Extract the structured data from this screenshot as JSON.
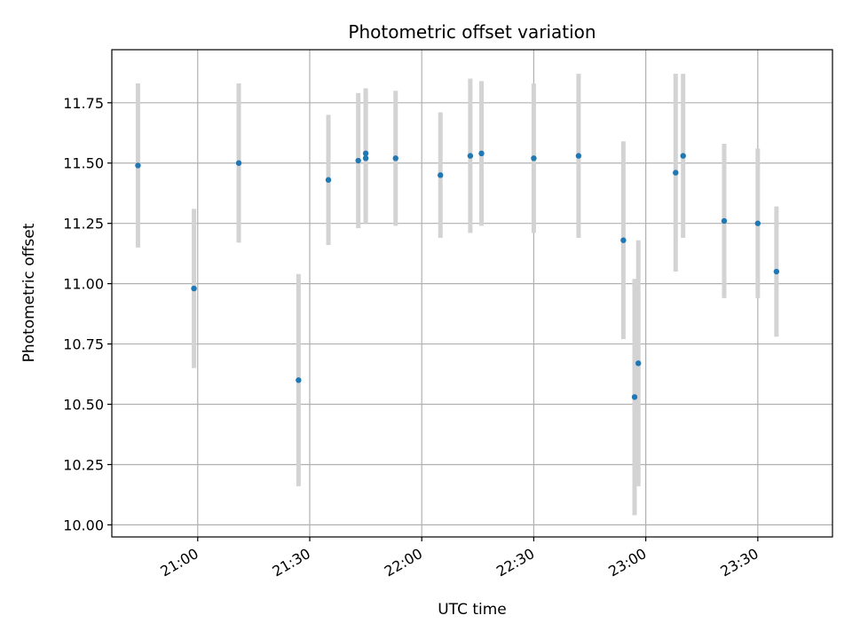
{
  "chart_data": {
    "type": "scatter",
    "title": "Photometric offset variation",
    "xlabel": "UTC time",
    "ylabel": "Photometric offset",
    "x_axis_type": "time",
    "xlim": [
      "20:37",
      "23:50"
    ],
    "ylim": [
      9.95,
      11.97
    ],
    "x_ticks": [
      "21:00",
      "21:30",
      "22:00",
      "22:30",
      "23:00",
      "23:30"
    ],
    "y_ticks": [
      10.0,
      10.25,
      10.5,
      10.75,
      11.0,
      11.25,
      11.5,
      11.75
    ],
    "y_tick_labels": [
      "10.00",
      "10.25",
      "10.50",
      "10.75",
      "11.00",
      "11.25",
      "11.50",
      "11.75"
    ],
    "grid": true,
    "legend": false,
    "colors": {
      "points": "#1f77b4",
      "error_bars": "#d3d3d3",
      "grid": "#b0b0b0"
    },
    "points": [
      {
        "x": "20:44",
        "y": 11.49,
        "err": 0.34
      },
      {
        "x": "20:59",
        "y": 10.98,
        "err": 0.33
      },
      {
        "x": "21:11",
        "y": 11.5,
        "err": 0.33
      },
      {
        "x": "21:27",
        "y": 10.6,
        "err": 0.44
      },
      {
        "x": "21:35",
        "y": 11.43,
        "err": 0.27
      },
      {
        "x": "21:43",
        "y": 11.51,
        "err": 0.28
      },
      {
        "x": "21:45",
        "y": 11.54,
        "err": 0.27
      },
      {
        "x": "21:45",
        "y": 11.52,
        "err": 0.27
      },
      {
        "x": "21:53",
        "y": 11.52,
        "err": 0.28
      },
      {
        "x": "22:05",
        "y": 11.45,
        "err": 0.26
      },
      {
        "x": "22:13",
        "y": 11.53,
        "err": 0.32
      },
      {
        "x": "22:16",
        "y": 11.54,
        "err": 0.3
      },
      {
        "x": "22:30",
        "y": 11.52,
        "err": 0.31
      },
      {
        "x": "22:42",
        "y": 11.53,
        "err": 0.34
      },
      {
        "x": "22:54",
        "y": 11.18,
        "err": 0.41
      },
      {
        "x": "22:57",
        "y": 10.53,
        "err": 0.49
      },
      {
        "x": "22:58",
        "y": 10.67,
        "err": 0.51
      },
      {
        "x": "23:08",
        "y": 11.46,
        "err": 0.41
      },
      {
        "x": "23:10",
        "y": 11.53,
        "err": 0.34
      },
      {
        "x": "23:21",
        "y": 11.26,
        "err": 0.32
      },
      {
        "x": "23:30",
        "y": 11.25,
        "err": 0.31
      },
      {
        "x": "23:35",
        "y": 11.05,
        "err": 0.27
      }
    ]
  }
}
